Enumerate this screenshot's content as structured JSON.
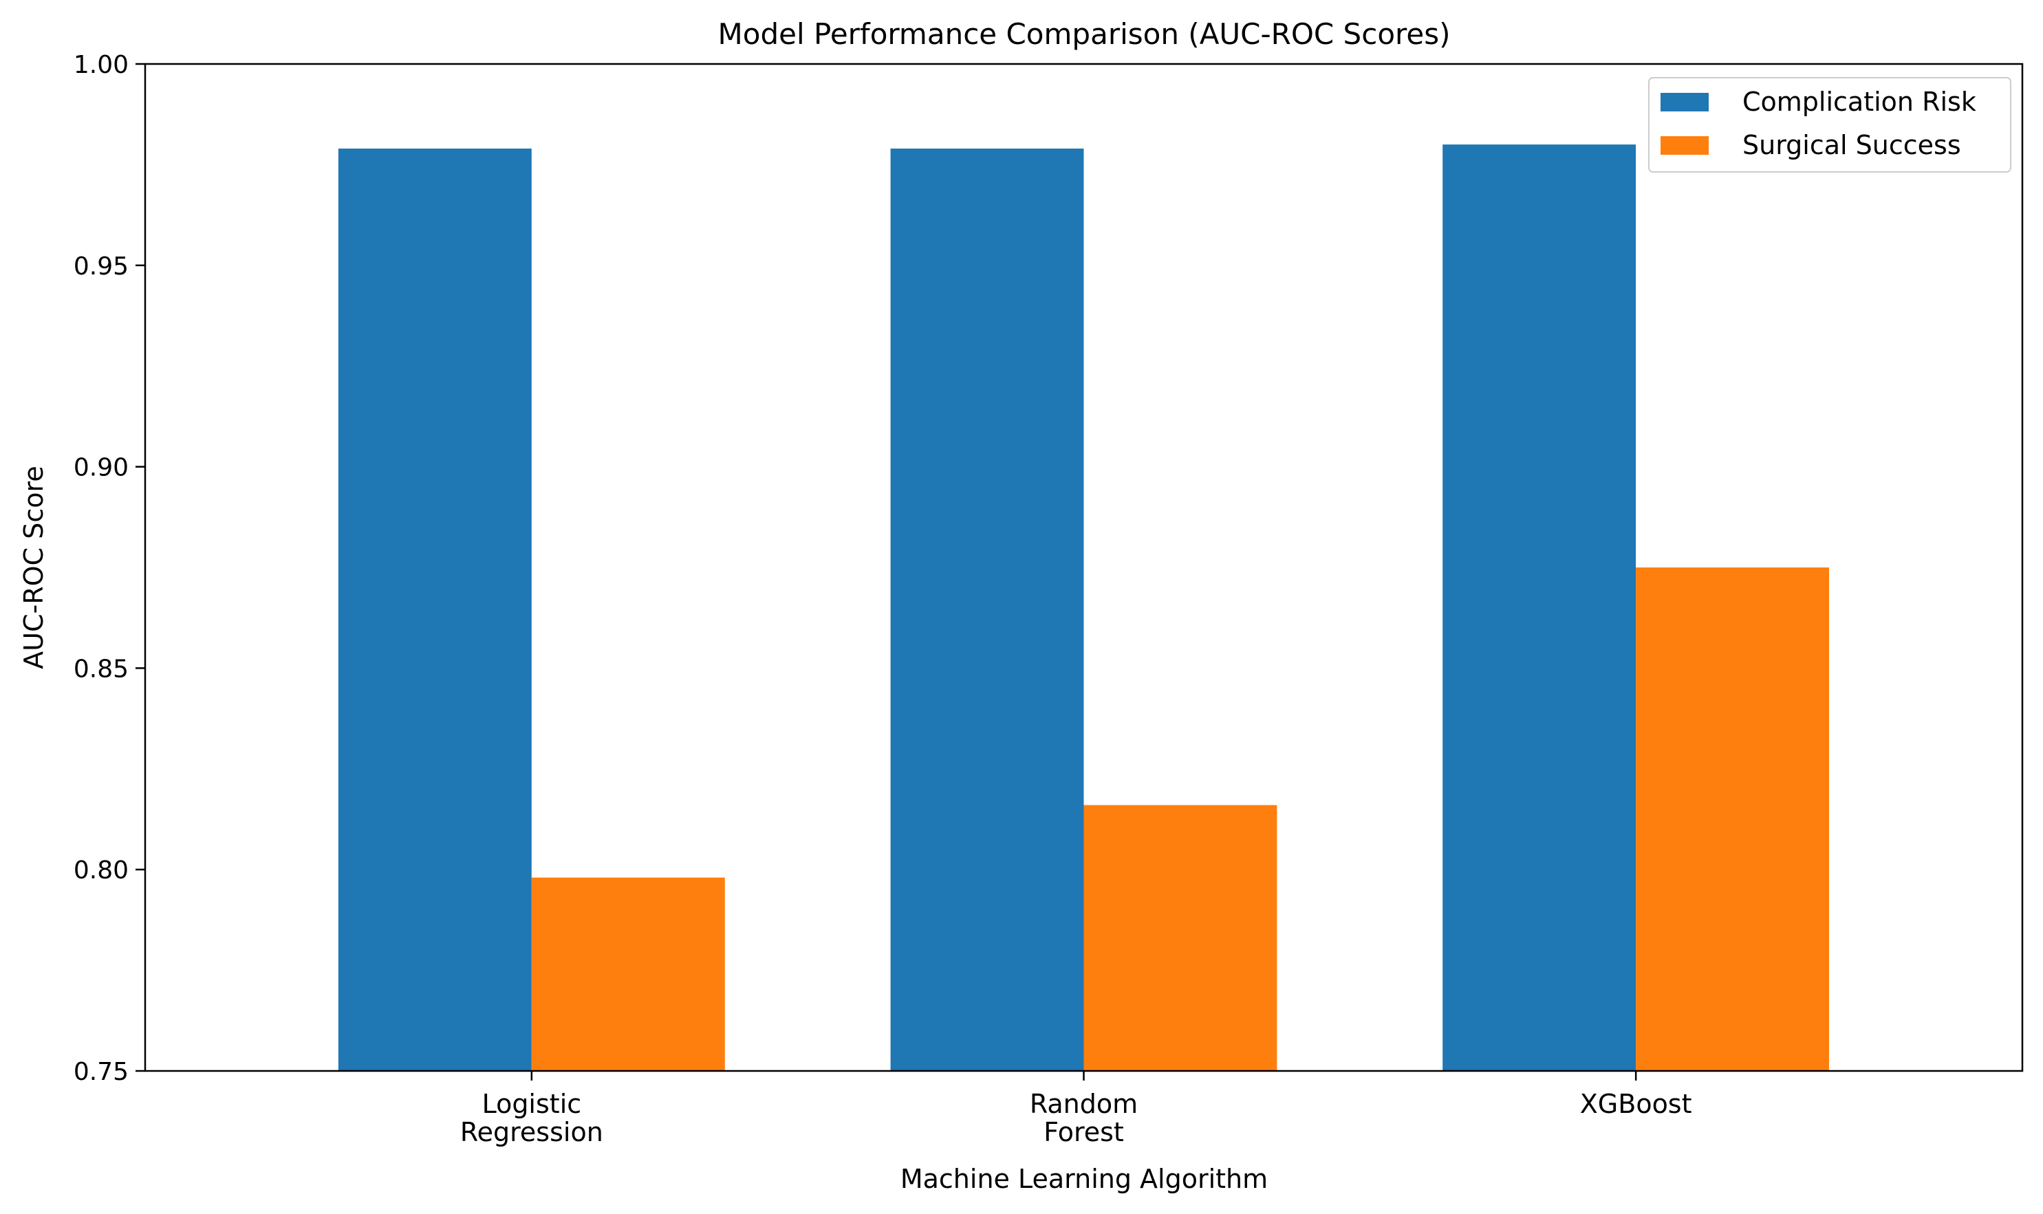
{
  "chart_data": {
    "type": "bar",
    "title": "Model Performance Comparison (AUC-ROC Scores)",
    "xlabel": "Machine Learning Algorithm",
    "ylabel": "AUC-ROC Score",
    "ylim": [
      0.75,
      1.0
    ],
    "yticks": [
      "0.75",
      "0.80",
      "0.85",
      "0.90",
      "0.95",
      "1.00"
    ],
    "categories": [
      [
        "Logistic",
        "Regression"
      ],
      [
        "Random",
        "Forest"
      ],
      [
        "XGBoost"
      ]
    ],
    "series": [
      {
        "name": "Complication Risk",
        "color": "#1f77b4",
        "values": [
          0.979,
          0.979,
          0.98
        ]
      },
      {
        "name": "Surgical Success",
        "color": "#ff7f0e",
        "values": [
          0.798,
          0.816,
          0.875
        ]
      }
    ],
    "legend_position": "top-right",
    "grid": false
  }
}
